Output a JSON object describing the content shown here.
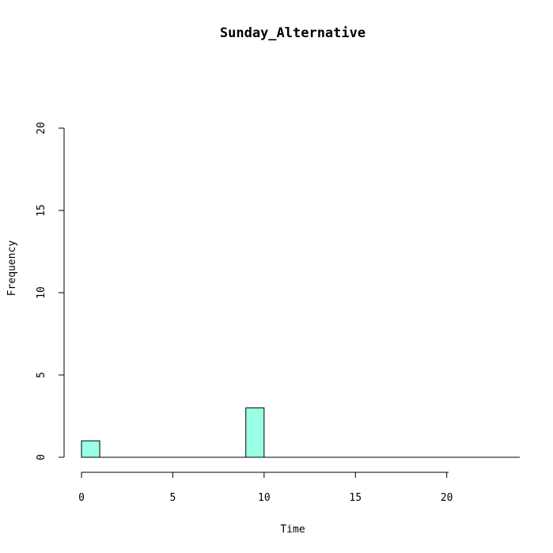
{
  "chart_data": {
    "type": "bar",
    "title": "Sunday_Alternative",
    "xlabel": "Time",
    "ylabel": "Frequency",
    "xlim": [
      0,
      24
    ],
    "ylim": [
      0,
      20
    ],
    "x_ticks": [
      "0",
      "5",
      "10",
      "15",
      "20"
    ],
    "y_ticks": [
      "0",
      "5",
      "10",
      "15",
      "20"
    ],
    "bin_width": 1,
    "bins": [
      0,
      1,
      2,
      3,
      4,
      5,
      6,
      7,
      8,
      9,
      10,
      11,
      12,
      13,
      14,
      15,
      16,
      17,
      18,
      19,
      20,
      21,
      22,
      23
    ],
    "values": [
      1,
      0,
      0,
      0,
      0,
      0,
      0,
      0,
      0,
      3,
      0,
      0,
      0,
      0,
      0,
      0,
      0,
      0,
      0,
      0,
      0,
      0,
      0,
      0
    ],
    "grid": false,
    "legend": "none",
    "bar_color": "#99FFE5",
    "edge_color": "#000000"
  }
}
